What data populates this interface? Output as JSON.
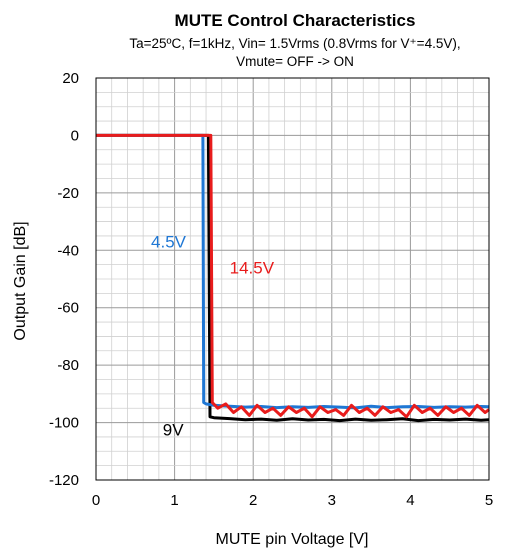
{
  "chart_data": {
    "type": "line",
    "title": "MUTE Control Characteristics",
    "subtitle_lines": [
      "Ta=25ºC, f=1kHz, Vin= 1.5Vrms (0.8Vrms for V⁺=4.5V),",
      "Vmute= OFF -> ON"
    ],
    "xlabel": "MUTE pin Voltage [V]",
    "ylabel": "Output Gain  [dB]",
    "xlim": [
      0,
      5
    ],
    "ylim": [
      -120,
      20
    ],
    "xticks": [
      0,
      1,
      2,
      3,
      4,
      5
    ],
    "yticks": [
      20,
      0,
      -20,
      -40,
      -60,
      -80,
      -100,
      -120
    ],
    "grid": true,
    "series": [
      {
        "name": "4.5V",
        "color": "#1f77d4",
        "x": [
          0,
          1.36,
          1.37,
          1.4,
          1.5,
          1.7,
          1.9,
          2.1,
          2.3,
          2.5,
          2.7,
          2.9,
          3.1,
          3.3,
          3.5,
          3.7,
          3.9,
          4.1,
          4.3,
          4.5,
          4.7,
          4.9,
          5.0
        ],
        "y": [
          0,
          0,
          -93,
          -93.5,
          -94,
          -94.3,
          -94.6,
          -94.4,
          -94.8,
          -94.5,
          -94.7,
          -94.4,
          -94.6,
          -94.9,
          -94.3,
          -94.8,
          -94.5,
          -94.4,
          -94.7,
          -94.5,
          -94.6,
          -94.4,
          -94.5
        ]
      },
      {
        "name": "9V",
        "color": "#000000",
        "x": [
          0,
          1.43,
          1.45,
          1.5,
          1.7,
          1.9,
          2.1,
          2.3,
          2.5,
          2.7,
          2.9,
          3.1,
          3.3,
          3.5,
          3.7,
          3.9,
          4.1,
          4.3,
          4.5,
          4.7,
          4.9,
          5.0
        ],
        "y": [
          0,
          0,
          -98,
          -98.3,
          -98.6,
          -99,
          -98.8,
          -99.2,
          -98.7,
          -99.1,
          -98.9,
          -99.3,
          -98.8,
          -99.2,
          -99,
          -98.7,
          -99.3,
          -98.9,
          -99.1,
          -98.8,
          -99.2,
          -99
        ]
      },
      {
        "name": "14.5V",
        "color": "#e81c1c",
        "x": [
          0,
          1.46,
          1.48,
          1.55,
          1.65,
          1.75,
          1.85,
          1.95,
          2.05,
          2.15,
          2.25,
          2.35,
          2.45,
          2.55,
          2.65,
          2.75,
          2.85,
          2.95,
          3.05,
          3.15,
          3.25,
          3.35,
          3.45,
          3.55,
          3.65,
          3.75,
          3.85,
          3.95,
          4.05,
          4.15,
          4.25,
          4.35,
          4.45,
          4.55,
          4.65,
          4.75,
          4.85,
          4.95,
          5.0
        ],
        "y": [
          0,
          0,
          -93,
          -95,
          -93.5,
          -96.5,
          -94.5,
          -97.5,
          -94,
          -96.5,
          -95,
          -97.5,
          -94.5,
          -96.5,
          -95,
          -98,
          -94.5,
          -96.5,
          -95.5,
          -97.5,
          -94,
          -96.5,
          -95,
          -97.5,
          -94.5,
          -96.5,
          -95.5,
          -98,
          -94,
          -96.5,
          -95,
          -97.5,
          -94.5,
          -96.5,
          -95,
          -97.5,
          -94,
          -96.5,
          -95.5
        ]
      }
    ],
    "annotations": [
      {
        "text": "4.5V",
        "x": 0.7,
        "y": -39,
        "color": "#1f77d4"
      },
      {
        "text": "14.5V",
        "x": 1.7,
        "y": -48,
        "color": "#e81c1c"
      },
      {
        "text": "9V",
        "x": 0.85,
        "y": -104.5,
        "color": "#000000"
      }
    ]
  }
}
